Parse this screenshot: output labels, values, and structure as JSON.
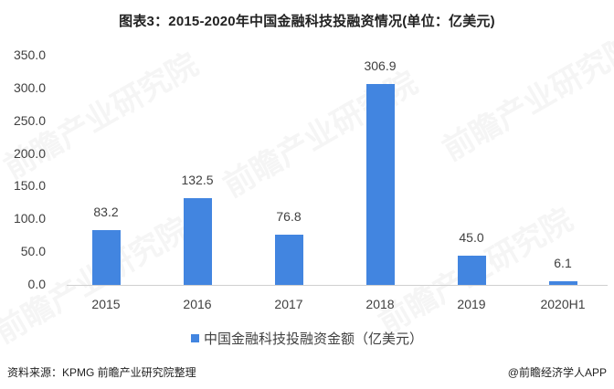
{
  "title": "图表3：2015-2020年中国金融科技投融资情况(单位：亿美元)",
  "chart_data": {
    "type": "bar",
    "title": "图表3：2015-2020年中国金融科技投融资情况(单位：亿美元)",
    "xlabel": "",
    "ylabel": "",
    "categories": [
      "2015",
      "2016",
      "2017",
      "2018",
      "2019",
      "2020H1"
    ],
    "series": [
      {
        "name": "中国金融科技投融资金额（亿美元）",
        "color": "#4285e0",
        "values": [
          83.2,
          132.5,
          76.8,
          306.9,
          45.0,
          6.1
        ]
      }
    ],
    "ylim": [
      0,
      350
    ],
    "yticks": [
      "0.0",
      "50.0",
      "100.0",
      "150.0",
      "200.0",
      "250.0",
      "300.0",
      "350.0"
    ],
    "data_labels": [
      "83.2",
      "132.5",
      "76.8",
      "306.9",
      "45.0",
      "6.1"
    ],
    "grid": false,
    "legend_position": "bottom"
  },
  "legend": {
    "label": "中国金融科技投融资金额（亿美元）"
  },
  "footer": {
    "source": "资料来源：KPMG 前瞻产业研究院整理",
    "credit": "@前瞻经济学人APP"
  },
  "watermark": "前瞻产业研究院"
}
